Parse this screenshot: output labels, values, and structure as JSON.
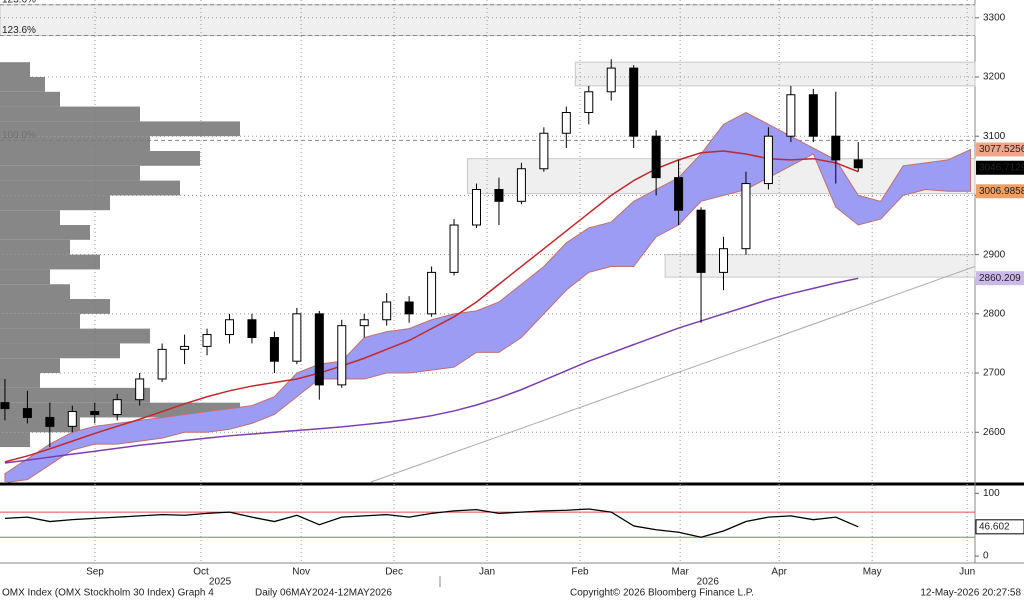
{
  "chart_data": [
    {
      "type": "candlestick",
      "xlim": [
        -0.22,
        43.2
      ],
      "ylim": [
        2516,
        3330
      ],
      "yticks": [
        2600,
        2700,
        2800,
        2900,
        3000,
        3100,
        3200,
        3300
      ],
      "xticks": [
        {
          "value": 4.01,
          "label": "Sep"
        },
        {
          "value": 8.73,
          "label": "Oct"
        },
        {
          "value": 13.19,
          "label": "Nov"
        },
        {
          "value": 17.33,
          "label": "Dec"
        },
        {
          "value": 21.47,
          "label": "Jan"
        },
        {
          "value": 25.61,
          "label": "Feb"
        },
        {
          "value": 30.07,
          "label": "Mar"
        },
        {
          "value": 34.48,
          "label": "Apr"
        },
        {
          "value": 38.62,
          "label": "May"
        },
        {
          "value": 42.85,
          "label": "Jun"
        }
      ],
      "years": [
        {
          "value": 9.58,
          "label": "2025"
        },
        {
          "value": 31.3,
          "label": "2026"
        }
      ],
      "grid": true,
      "open": [
        2650,
        2640,
        2625,
        2610,
        2635,
        2630,
        2655,
        2690,
        2740,
        2745,
        2765,
        2790,
        2760,
        2720,
        2800,
        2680,
        2780,
        2790,
        2820,
        2800,
        2870,
        2950,
        3010,
        2990,
        3045,
        3105,
        3140,
        3175,
        3215,
        3100,
        3030,
        2975,
        2870,
        2910,
        3020,
        3100,
        3170,
        3100,
        3060
      ],
      "high": [
        2690,
        2670,
        2650,
        2645,
        2650,
        2665,
        2700,
        2750,
        2765,
        2775,
        2800,
        2800,
        2770,
        2810,
        2805,
        2790,
        2800,
        2835,
        2830,
        2880,
        2960,
        3020,
        3030,
        3055,
        3115,
        3150,
        3185,
        3230,
        3220,
        3110,
        3060,
        2980,
        2930,
        3040,
        3115,
        3185,
        3180,
        3175,
        3090
      ],
      "low": [
        2620,
        2615,
        2575,
        2600,
        2615,
        2620,
        2645,
        2685,
        2715,
        2730,
        2750,
        2750,
        2700,
        2715,
        2655,
        2675,
        2760,
        2780,
        2785,
        2795,
        2865,
        2945,
        2950,
        2985,
        3040,
        3080,
        3120,
        3160,
        3080,
        3000,
        2950,
        2785,
        2840,
        2900,
        3010,
        3090,
        3090,
        3020,
        3040
      ],
      "close": [
        2640,
        2625,
        2610,
        2635,
        2630,
        2655,
        2690,
        2740,
        2745,
        2765,
        2790,
        2760,
        2720,
        2800,
        2680,
        2780,
        2790,
        2820,
        2800,
        2870,
        2950,
        3010,
        2990,
        3045,
        3105,
        3140,
        3175,
        3215,
        3100,
        3030,
        2975,
        2870,
        2910,
        3020,
        3100,
        3170,
        3100,
        3060,
        3046.7129
      ],
      "ma_short": {
        "color": "#c0282e",
        "values": [
          2550,
          2560,
          2572,
          2585,
          2598,
          2610,
          2622,
          2635,
          2648,
          2660,
          2670,
          2678,
          2684,
          2690,
          2700,
          2712,
          2725,
          2740,
          2755,
          2775,
          2795,
          2820,
          2850,
          2880,
          2910,
          2940,
          2970,
          3000,
          3025,
          3045,
          3060,
          3072,
          3075,
          3070,
          3062,
          3060,
          3062,
          3055,
          3040
        ]
      },
      "ma_long": {
        "color": "#7a3fb0",
        "values": [
          2548,
          2553,
          2558,
          2563,
          2568,
          2573,
          2578,
          2582,
          2586,
          2590,
          2594,
          2597,
          2600,
          2603,
          2606,
          2609,
          2613,
          2617,
          2622,
          2628,
          2636,
          2646,
          2658,
          2672,
          2688,
          2704,
          2720,
          2734,
          2748,
          2762,
          2776,
          2788,
          2800,
          2812,
          2824,
          2834,
          2843,
          2852,
          2860
        ]
      },
      "cloud": {
        "color": "#9c9cf4",
        "upper": [
          2530,
          2555,
          2580,
          2600,
          2610,
          2615,
          2620,
          2625,
          2630,
          2635,
          2640,
          2645,
          2660,
          2700,
          2715,
          2720,
          2760,
          2770,
          2775,
          2790,
          2800,
          2805,
          2820,
          2850,
          2880,
          2920,
          2945,
          2955,
          2990,
          3010,
          3030,
          3070,
          3120,
          3140,
          3120,
          3100,
          3080,
          3060,
          3000,
          2990,
          3050,
          3055,
          3060,
          3077.5256
        ],
        "lower": [
          2515,
          2520,
          2545,
          2570,
          2580,
          2580,
          2585,
          2590,
          2600,
          2600,
          2605,
          2615,
          2630,
          2660,
          2690,
          2690,
          2690,
          2700,
          2700,
          2705,
          2710,
          2735,
          2735,
          2760,
          2800,
          2840,
          2870,
          2880,
          2880,
          2930,
          2950,
          2990,
          3000,
          3010,
          3030,
          3050,
          3070,
          2980,
          2950,
          2960,
          3000,
          3010,
          3006.9858,
          3006.9858
        ]
      },
      "trendline": {
        "x": [
          16.3,
          43.2
        ],
        "values": [
          2516,
          2880
        ]
      },
      "zones": [
        {
          "x0": -0.22,
          "range": [
            3270,
            3322
          ]
        },
        {
          "x0": 25.4,
          "range": [
            3185,
            3225
          ]
        },
        {
          "x0": 20.6,
          "range": [
            3003,
            3062
          ]
        },
        {
          "x0": 29.4,
          "range": [
            2862,
            2900
          ]
        }
      ],
      "levels": [
        {
          "value": 3322,
          "label": "123.6%"
        },
        {
          "value": 3270,
          "label": "123.6%"
        },
        {
          "value": 3093,
          "label": "100.0%"
        }
      ],
      "price_labels": [
        {
          "value": 3077.5256,
          "color": "#f3a58a"
        },
        {
          "value": 3046.7129,
          "color": "#000000"
        },
        {
          "value": 3006.9858,
          "color": "#f2a062"
        },
        {
          "value": 2860.209,
          "color": "#cbb9ea"
        }
      ],
      "volume_profile": {
        "bins": [
          2575,
          2600,
          2625,
          2650,
          2675,
          2700,
          2725,
          2750,
          2775,
          2800,
          2825,
          2850,
          2875,
          2900,
          2925,
          2950,
          2975,
          3000,
          3025,
          3050,
          3075,
          3100,
          3125,
          3150,
          3175,
          3200,
          3225
        ],
        "values": [
          30,
          80,
          240,
          150,
          40,
          60,
          120,
          150,
          80,
          110,
          70,
          50,
          100,
          70,
          90,
          60,
          110,
          180,
          140,
          200,
          150,
          240,
          140,
          60,
          45,
          30
        ]
      }
    },
    {
      "type": "line",
      "xlim": [
        -0.22,
        43.2
      ],
      "ylim": [
        -11,
        110
      ],
      "yticks": [
        0,
        50,
        100
      ],
      "levels": [
        {
          "value": 70,
          "color": "#e05050"
        },
        {
          "value": 30,
          "color": "#3cb043"
        }
      ],
      "series": [
        {
          "color": "#000000",
          "values": [
            60,
            62,
            55,
            58,
            60,
            62,
            64,
            66,
            65,
            68,
            70,
            62,
            55,
            65,
            50,
            62,
            64,
            66,
            62,
            68,
            72,
            74,
            68,
            70,
            72,
            73,
            75,
            70,
            48,
            42,
            38,
            30,
            40,
            55,
            62,
            64,
            58,
            62,
            46.602
          ]
        }
      ]
    }
  ],
  "footer": {
    "left": "OMX Index (OMX Stockholm 30 Index) Graph 4",
    "range": "Daily 06MAY2024-12MAY2026",
    "copyright": "Copyright© 2026 Bloomberg Finance L.P.",
    "timestamp": "12-May-2026 20:27:58"
  }
}
